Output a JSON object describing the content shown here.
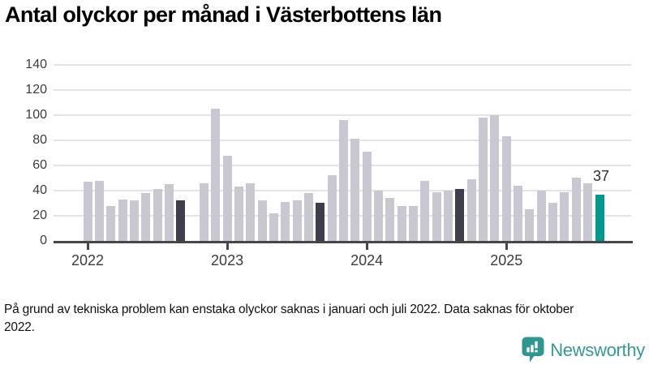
{
  "title": "Antal olyckor per månad i Västerbottens län",
  "footnote": "På grund av tekniska problem kan enstaka olyckor saknas i januari och juli 2022. Data saknas för oktober 2022.",
  "brand": {
    "name": "Newsworthy",
    "wordmark_color": "#379a94",
    "icon_color": "#2f968f"
  },
  "colors": {
    "normal": "#c9c8d2",
    "highlight": "#3e3d4b",
    "current": "#00988c",
    "grid": "#e4e4e4",
    "axis": "#474747",
    "tick_text": "#3d3d3d",
    "annotation_text": "#2e2e2e"
  },
  "chart_data": {
    "type": "bar",
    "title": "Antal olyckor per månad i Västerbottens län",
    "xlabel": "",
    "ylabel": "",
    "ylim": [
      0,
      140
    ],
    "y_ticks": [
      0,
      20,
      40,
      60,
      80,
      100,
      120,
      140
    ],
    "grid": true,
    "x_ticks": [
      {
        "month_index": 0,
        "label": "2022"
      },
      {
        "month_index": 12,
        "label": "2023"
      },
      {
        "month_index": 24,
        "label": "2024"
      },
      {
        "month_index": 36,
        "label": "2025"
      }
    ],
    "annotation": {
      "month_index": 44,
      "text": "37"
    },
    "months": [
      {
        "month": "2022-01",
        "value": 47,
        "role": "normal"
      },
      {
        "month": "2022-02",
        "value": 48,
        "role": "normal"
      },
      {
        "month": "2022-03",
        "value": 28,
        "role": "normal"
      },
      {
        "month": "2022-04",
        "value": 33,
        "role": "normal"
      },
      {
        "month": "2022-05",
        "value": 32,
        "role": "normal"
      },
      {
        "month": "2022-06",
        "value": 38,
        "role": "normal"
      },
      {
        "month": "2022-07",
        "value": 41,
        "role": "normal"
      },
      {
        "month": "2022-08",
        "value": 45,
        "role": "normal"
      },
      {
        "month": "2022-09",
        "value": 32,
        "role": "highlight"
      },
      {
        "month": "2022-10",
        "value": null,
        "role": "missing"
      },
      {
        "month": "2022-11",
        "value": 46,
        "role": "normal"
      },
      {
        "month": "2022-12",
        "value": 105,
        "role": "normal"
      },
      {
        "month": "2023-01",
        "value": 68,
        "role": "normal"
      },
      {
        "month": "2023-02",
        "value": 43,
        "role": "normal"
      },
      {
        "month": "2023-03",
        "value": 46,
        "role": "normal"
      },
      {
        "month": "2023-04",
        "value": 32,
        "role": "normal"
      },
      {
        "month": "2023-05",
        "value": 22,
        "role": "normal"
      },
      {
        "month": "2023-06",
        "value": 31,
        "role": "normal"
      },
      {
        "month": "2023-07",
        "value": 32,
        "role": "normal"
      },
      {
        "month": "2023-08",
        "value": 38,
        "role": "normal"
      },
      {
        "month": "2023-09",
        "value": 30,
        "role": "highlight"
      },
      {
        "month": "2023-10",
        "value": 52,
        "role": "normal"
      },
      {
        "month": "2023-11",
        "value": 96,
        "role": "normal"
      },
      {
        "month": "2023-12",
        "value": 81,
        "role": "normal"
      },
      {
        "month": "2024-01",
        "value": 71,
        "role": "normal"
      },
      {
        "month": "2024-02",
        "value": 40,
        "role": "normal"
      },
      {
        "month": "2024-03",
        "value": 34,
        "role": "normal"
      },
      {
        "month": "2024-04",
        "value": 28,
        "role": "normal"
      },
      {
        "month": "2024-05",
        "value": 28,
        "role": "normal"
      },
      {
        "month": "2024-06",
        "value": 48,
        "role": "normal"
      },
      {
        "month": "2024-07",
        "value": 39,
        "role": "normal"
      },
      {
        "month": "2024-08",
        "value": 40,
        "role": "normal"
      },
      {
        "month": "2024-09",
        "value": 41,
        "role": "highlight"
      },
      {
        "month": "2024-10",
        "value": 49,
        "role": "normal"
      },
      {
        "month": "2024-11",
        "value": 98,
        "role": "normal"
      },
      {
        "month": "2024-12",
        "value": 100,
        "role": "normal"
      },
      {
        "month": "2025-01",
        "value": 83,
        "role": "normal"
      },
      {
        "month": "2025-02",
        "value": 44,
        "role": "normal"
      },
      {
        "month": "2025-03",
        "value": 25,
        "role": "normal"
      },
      {
        "month": "2025-04",
        "value": 40,
        "role": "normal"
      },
      {
        "month": "2025-05",
        "value": 30,
        "role": "normal"
      },
      {
        "month": "2025-06",
        "value": 39,
        "role": "normal"
      },
      {
        "month": "2025-07",
        "value": 50,
        "role": "normal"
      },
      {
        "month": "2025-08",
        "value": 46,
        "role": "normal"
      },
      {
        "month": "2025-09",
        "value": 37,
        "role": "current"
      }
    ]
  }
}
